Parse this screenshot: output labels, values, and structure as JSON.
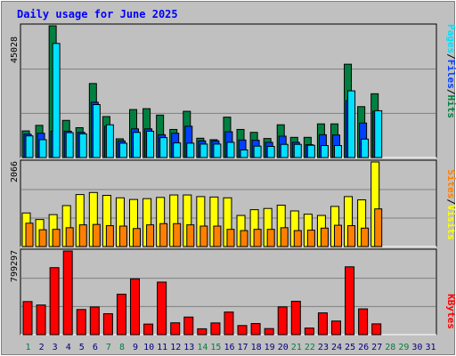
{
  "title": "Daily usage for June 2025",
  "colors": {
    "background": "#c0c0c0",
    "panel": "#c0c0c0",
    "hits": "#008040",
    "files": "#0040ff",
    "pages": "#00e0ff",
    "visits": "#ffff00",
    "sites": "#ff8000",
    "kbytes": "#ff0000",
    "weekday": "#000080",
    "weekend": "#008040",
    "grid": "#808080"
  },
  "legend_top": {
    "pages": "Pages",
    "sep1": "/",
    "files": "Files",
    "sep2": "/",
    "hits": "Hits"
  },
  "legend_mid": {
    "sites": "Sites",
    "sep1": "/",
    "visits": "Visits"
  },
  "legend_bottom": {
    "kbytes": "KBytes"
  },
  "chart_data": [
    {
      "type": "bar",
      "title": "Daily usage for June 2025",
      "categories": [
        "1",
        "2",
        "3",
        "4",
        "5",
        "6",
        "7",
        "8",
        "9",
        "10",
        "11",
        "12",
        "13",
        "14",
        "15",
        "16",
        "17",
        "18",
        "19",
        "20",
        "21",
        "22",
        "23",
        "24",
        "25",
        "26",
        "27",
        "28",
        "29",
        "30",
        "31"
      ],
      "weekend_days": [
        "1",
        "7",
        "8",
        "14",
        "15",
        "21",
        "22",
        "28",
        "29"
      ],
      "ytick": "45028",
      "ylim": [
        0,
        45028
      ],
      "legend": [
        "Pages",
        "Files",
        "Hits"
      ],
      "series": [
        {
          "name": "Hits",
          "values": [
            9100,
            11000,
            45028,
            12700,
            10200,
            25300,
            14000,
            6400,
            16400,
            16700,
            14500,
            9600,
            15800,
            6600,
            6100,
            13800,
            9600,
            8600,
            6500,
            11200,
            6900,
            6900,
            11500,
            11500,
            31900,
            17400,
            21800,
            0,
            0,
            0,
            0
          ]
        },
        {
          "name": "Files",
          "values": [
            8000,
            8300,
            9000,
            9000,
            8600,
            18900,
            10700,
            5700,
            9800,
            9800,
            7800,
            8300,
            10700,
            5700,
            5700,
            8800,
            6000,
            5900,
            5200,
            7300,
            5200,
            4400,
            7800,
            7700,
            19400,
            11800,
            15800,
            0,
            0,
            0,
            0
          ]
        },
        {
          "name": "Pages",
          "values": [
            7400,
            6100,
            39000,
            8500,
            8100,
            18100,
            11200,
            4900,
            8600,
            9000,
            6800,
            5000,
            4900,
            4600,
            4600,
            5200,
            2600,
            3900,
            3800,
            4500,
            4500,
            4200,
            4100,
            4100,
            22800,
            6300,
            16000,
            0,
            0,
            0,
            0
          ]
        }
      ]
    },
    {
      "type": "bar",
      "categories": [
        "1",
        "2",
        "3",
        "4",
        "5",
        "6",
        "7",
        "8",
        "9",
        "10",
        "11",
        "12",
        "13",
        "14",
        "15",
        "16",
        "17",
        "18",
        "19",
        "20",
        "21",
        "22",
        "23",
        "24",
        "25",
        "26",
        "27",
        "28",
        "29",
        "30",
        "31"
      ],
      "ytick": "2066",
      "ylim": [
        0,
        2066
      ],
      "legend": [
        "Sites",
        "Visits"
      ],
      "series": [
        {
          "name": "Visits",
          "values": [
            820,
            660,
            780,
            1000,
            1270,
            1320,
            1250,
            1190,
            1150,
            1170,
            1200,
            1260,
            1260,
            1220,
            1210,
            1190,
            760,
            900,
            930,
            1010,
            870,
            790,
            760,
            980,
            1220,
            1140,
            2066,
            0,
            0,
            0,
            0
          ]
        },
        {
          "name": "Sites",
          "values": [
            570,
            410,
            420,
            460,
            530,
            540,
            510,
            500,
            440,
            530,
            560,
            560,
            530,
            500,
            500,
            420,
            390,
            420,
            420,
            460,
            390,
            400,
            450,
            520,
            510,
            450,
            920,
            0,
            0,
            0,
            0
          ]
        }
      ]
    },
    {
      "type": "bar",
      "categories": [
        "1",
        "2",
        "3",
        "4",
        "5",
        "6",
        "7",
        "8",
        "9",
        "10",
        "11",
        "12",
        "13",
        "14",
        "15",
        "16",
        "17",
        "18",
        "19",
        "20",
        "21",
        "22",
        "23",
        "24",
        "25",
        "26",
        "27",
        "28",
        "29",
        "30",
        "31"
      ],
      "ytick": "799297",
      "ylim": [
        0,
        799297
      ],
      "legend": [
        "KBytes"
      ],
      "series": [
        {
          "name": "KBytes",
          "values": [
            316000,
            283000,
            640000,
            799297,
            240000,
            264000,
            200000,
            386000,
            533000,
            101000,
            502000,
            113000,
            168000,
            56000,
            112000,
            216000,
            87000,
            106000,
            58000,
            265000,
            319000,
            63000,
            208000,
            130000,
            648000,
            246000,
            103000,
            0,
            0,
            0,
            0
          ]
        }
      ]
    }
  ]
}
